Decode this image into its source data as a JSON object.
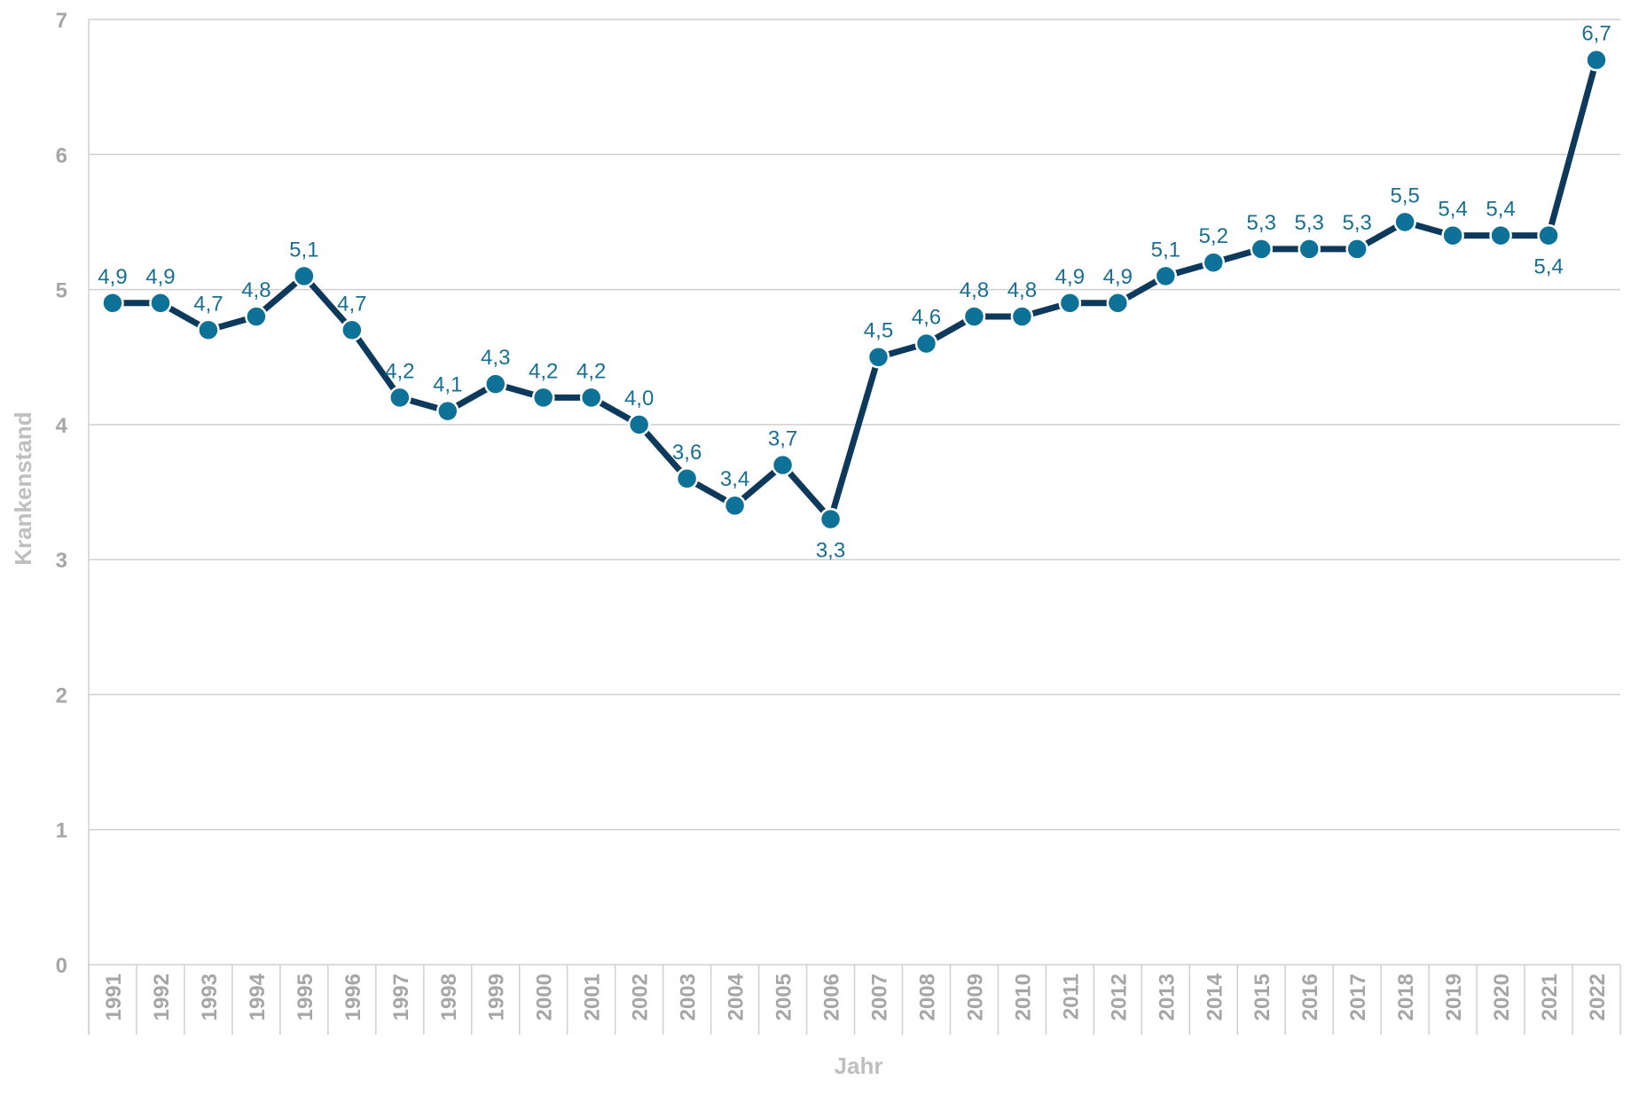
{
  "chart_data": {
    "type": "line",
    "title": "",
    "xlabel": "Jahr",
    "ylabel": "Krankenstand",
    "ylim": [
      0,
      7
    ],
    "yticks": [
      "0",
      "1",
      "2",
      "3",
      "4",
      "5",
      "6",
      "7"
    ],
    "grid": true,
    "legend": "none",
    "categories": [
      "1991",
      "1992",
      "1993",
      "1994",
      "1995",
      "1996",
      "1997",
      "1998",
      "1999",
      "2000",
      "2001",
      "2002",
      "2003",
      "2004",
      "2005",
      "2006",
      "2007",
      "2008",
      "2009",
      "2010",
      "2011",
      "2012",
      "2013",
      "2014",
      "2015",
      "2016",
      "2017",
      "2018",
      "2019",
      "2020",
      "2021",
      "2022"
    ],
    "series": [
      {
        "values": [
          4.9,
          4.9,
          4.7,
          4.8,
          5.1,
          4.7,
          4.2,
          4.1,
          4.3,
          4.2,
          4.2,
          4.0,
          3.6,
          3.4,
          3.7,
          3.3,
          4.5,
          4.6,
          4.8,
          4.8,
          4.9,
          4.9,
          5.1,
          5.2,
          5.3,
          5.3,
          5.3,
          5.5,
          5.4,
          5.4,
          5.4,
          6.7
        ],
        "labels": [
          "4,9",
          "4,9",
          "4,7",
          "4,8",
          "5,1",
          "4,7",
          "4,2",
          "4,1",
          "4,3",
          "4,2",
          "4,2",
          "4,0",
          "3,6",
          "3,4",
          "3,7",
          "3,3",
          "4,5",
          "4,6",
          "4,8",
          "4,8",
          "4,9",
          "4,9",
          "5,1",
          "5,2",
          "5,3",
          "5,3",
          "5,3",
          "5,5",
          "5,4",
          "5,4",
          "5,4",
          "6,7"
        ],
        "label_positions": [
          "above",
          "above",
          "above",
          "above",
          "above",
          "above",
          "above",
          "above",
          "above",
          "above",
          "above",
          "above",
          "above",
          "above",
          "above",
          "below",
          "above",
          "above",
          "above",
          "above",
          "above",
          "above",
          "above",
          "above",
          "above",
          "above",
          "above",
          "above",
          "above",
          "above",
          "below",
          "above"
        ]
      }
    ],
    "colors": {
      "line": "#0d3a5c",
      "marker": "#0e7298",
      "marker_stroke": "#ffffff",
      "data_label": "#1a6f91",
      "grid": "#d0d0d0",
      "axis_text": "#a6a6a6",
      "axis_title": "#bfbfbf"
    }
  }
}
